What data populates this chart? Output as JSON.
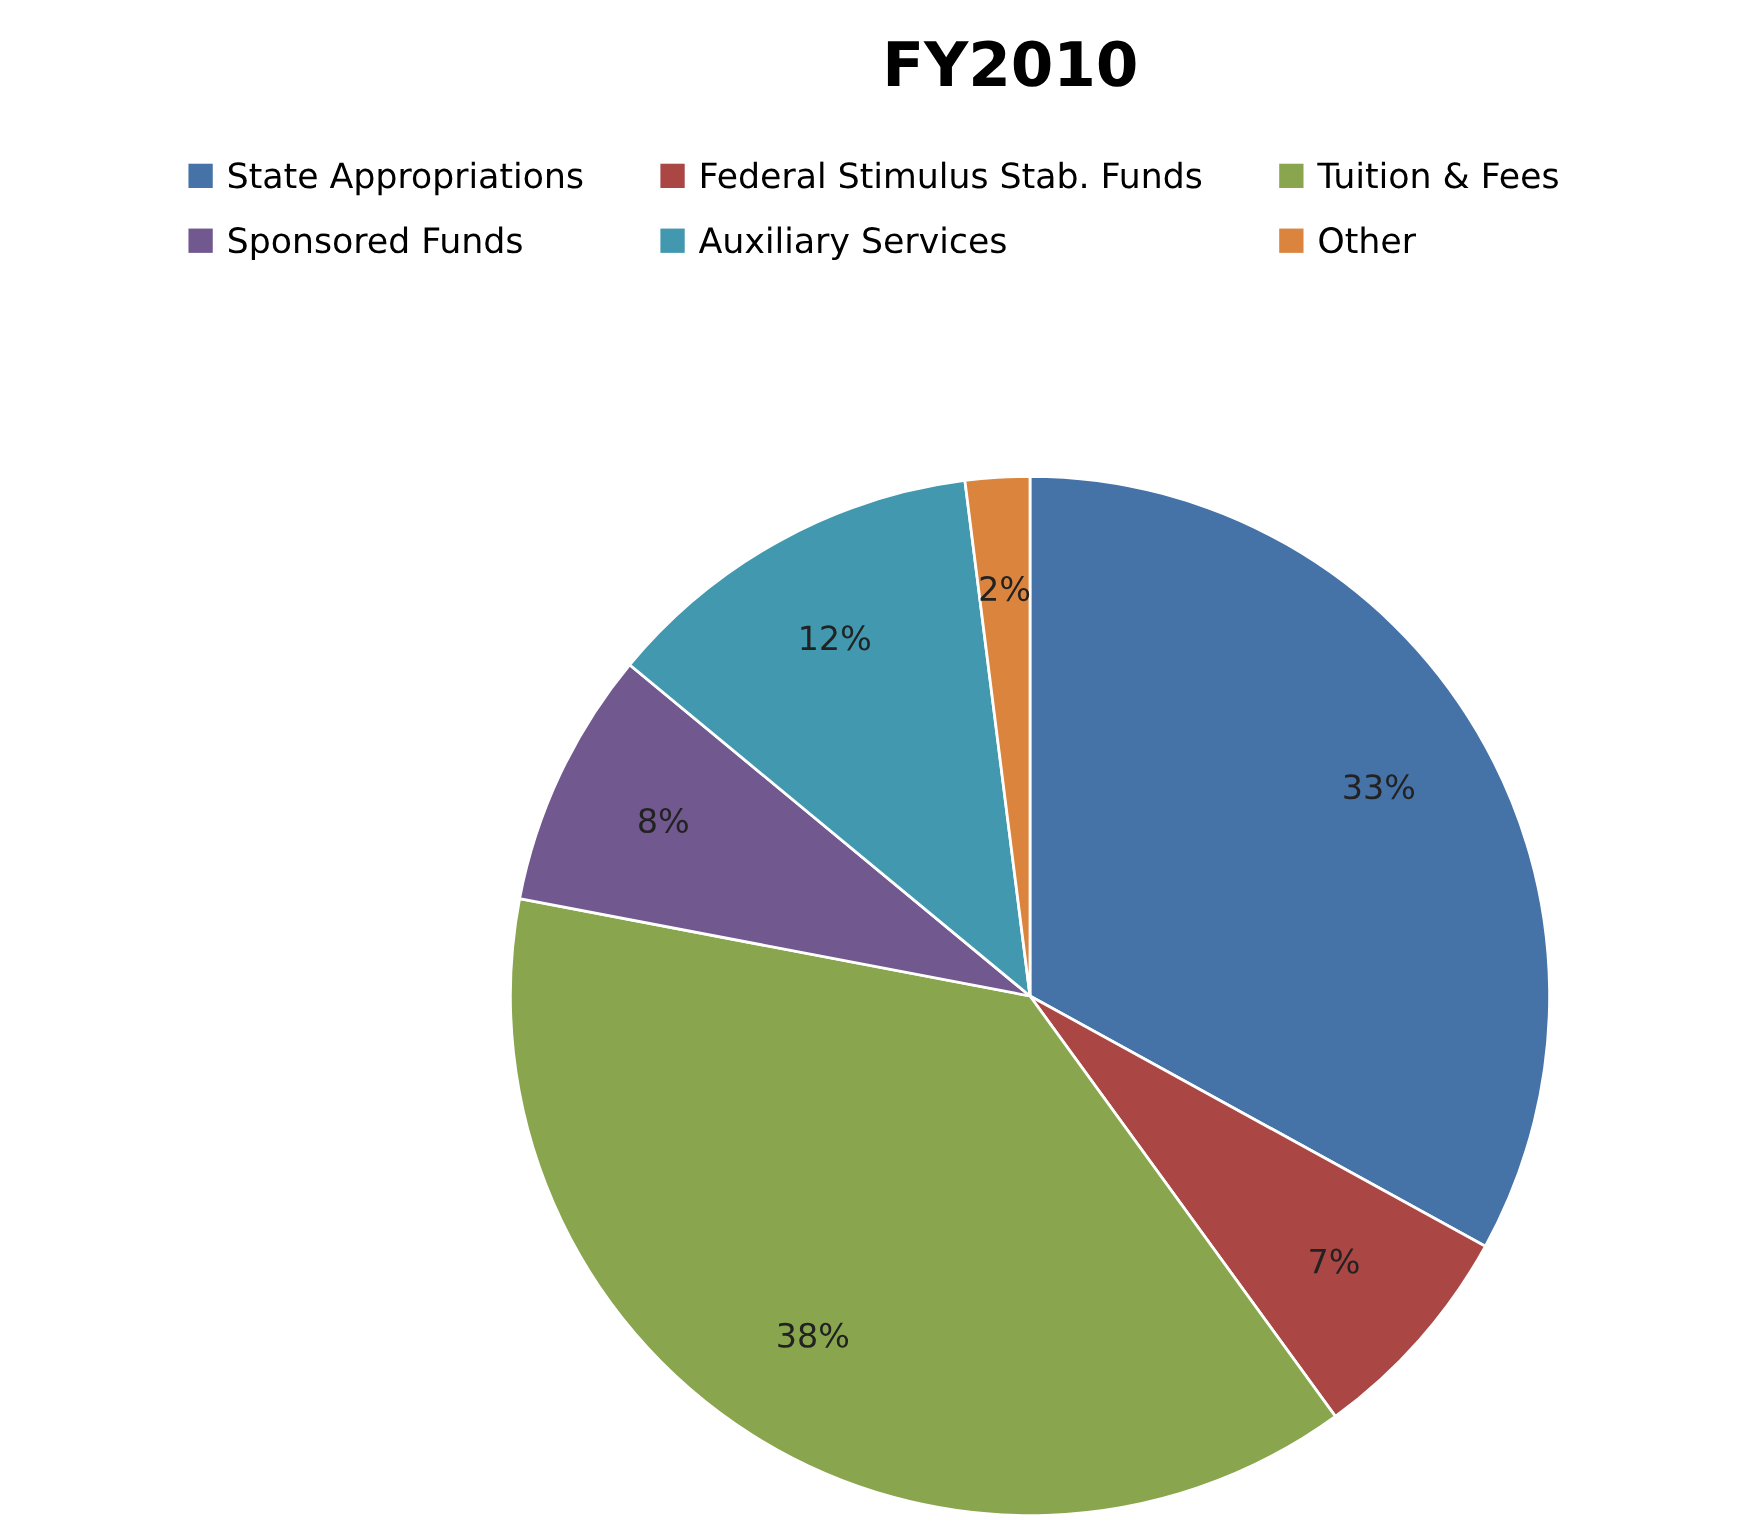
{
  "chart_data": {
    "type": "pie",
    "title": "FY2010",
    "categories": [
      "State Appropriations",
      "Federal Stimulus Stab. Funds",
      "Tuition & Fees",
      "Sponsored Funds",
      "Auxiliary Services",
      "Other"
    ],
    "values": [
      33,
      7,
      38,
      8,
      12,
      2
    ],
    "colors": [
      "#4572a7",
      "#aa4643",
      "#89a54e",
      "#71588f",
      "#4198af",
      "#db843d"
    ],
    "value_labels": [
      "33%",
      "7%",
      "38%",
      "8%",
      "12%",
      "2%"
    ],
    "legend": "top"
  }
}
